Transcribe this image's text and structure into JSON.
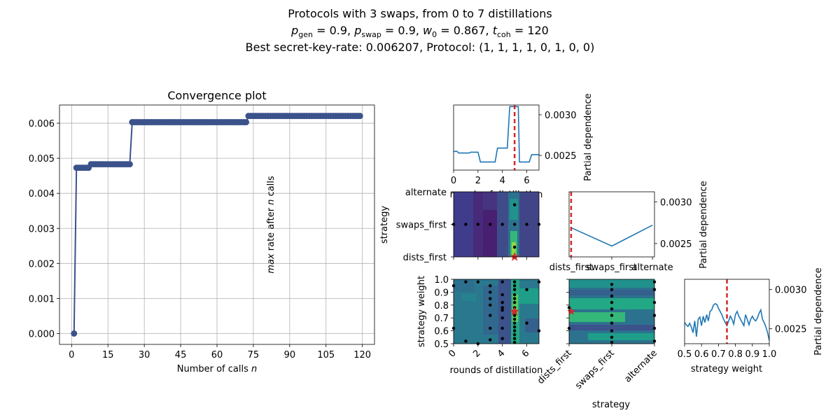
{
  "figure": {
    "title_line1": "Protocols with 3 swaps, from 0 to 7 distillations",
    "title_line2": "p_gen = 0.9, p_swap = 0.9, w_0 = 0.867, t_coh = 120",
    "title_line3": "Best secret-key-rate: 0.006207, Protocol: (1, 1, 1, 1, 0, 1, 0, 0)"
  },
  "convergence": {
    "title": "Convergence plot",
    "xlabel": "Number of calls n",
    "ylabel": "max rate after n calls",
    "xticks": [
      "0",
      "15",
      "30",
      "45",
      "60",
      "75",
      "90",
      "105",
      "120"
    ],
    "yticks": [
      "0.000",
      "0.001",
      "0.002",
      "0.003",
      "0.004",
      "0.005",
      "0.006"
    ]
  },
  "pd_distill": {
    "xlabel": "rounds of distillation",
    "ylabel": "Partial dependence",
    "xticks": [
      "0",
      "2",
      "4",
      "6"
    ],
    "yticks": [
      "0.0025",
      "0.0030"
    ]
  },
  "pd_strategy": {
    "ylabel": "Partial dependence",
    "xticks": [
      "dists_first",
      "swaps_first",
      "alternate"
    ],
    "yticks": [
      "0.0025",
      "0.0030"
    ]
  },
  "pd_weight": {
    "xlabel": "strategy weight",
    "ylabel": "Partial dependence",
    "xticks": [
      "0.5",
      "0.6",
      "0.7",
      "0.8",
      "0.9",
      "1.0"
    ],
    "yticks": [
      "0.0025",
      "0.0030"
    ]
  },
  "contour_sd": {
    "ylabel": "strategy",
    "yticks": [
      "alternate",
      "swaps_first",
      "dists_first"
    ]
  },
  "contour_wd": {
    "xlabel": "rounds of distillation",
    "ylabel": "strategy weight",
    "xticks": [
      "0",
      "2",
      "4",
      "6"
    ],
    "yticks": [
      "1.0",
      "0.9",
      "0.8",
      "0.7",
      "0.6",
      "0.5"
    ]
  },
  "contour_ws": {
    "xlabel": "strategy",
    "xticks": [
      "dists_first",
      "swaps_first",
      "alternate"
    ]
  },
  "colors": {
    "convergence_line": "#3b528b",
    "pd_line": "#1f77b4",
    "best_marker": "#d62728",
    "grid": "#b0b0b0"
  },
  "chart_data": [
    {
      "type": "line",
      "name": "convergence",
      "xlim": [
        -5,
        125
      ],
      "ylim": [
        -0.00031,
        0.00652
      ],
      "grid": true,
      "x_start": 1,
      "y": [
        0,
        0.00473,
        0.00473,
        0.00473,
        0.00473,
        0.00473,
        0.00473,
        0.00483,
        0.00483,
        0.00483,
        0.00483,
        0.00483,
        0.00483,
        0.00483,
        0.00483,
        0.00483,
        0.00483,
        0.00483,
        0.00483,
        0.00483,
        0.00483,
        0.00483,
        0.00483,
        0.00483,
        0.00603,
        0.00603,
        0.00603,
        0.00603,
        0.00603,
        0.00603,
        0.00603,
        0.00603,
        0.00603,
        0.00603,
        0.00603,
        0.00603,
        0.00603,
        0.00603,
        0.00603,
        0.00603,
        0.00603,
        0.00603,
        0.00603,
        0.00603,
        0.00603,
        0.00603,
        0.00603,
        0.00603,
        0.00603,
        0.00603,
        0.00603,
        0.00603,
        0.00603,
        0.00603,
        0.00603,
        0.00603,
        0.00603,
        0.00603,
        0.00603,
        0.00603,
        0.00603,
        0.00603,
        0.00603,
        0.00603,
        0.00603,
        0.00603,
        0.00603,
        0.00603,
        0.00603,
        0.00603,
        0.00603,
        0.00603,
        0.006207,
        0.006207,
        0.006207,
        0.006207,
        0.006207,
        0.006207,
        0.006207,
        0.006207,
        0.006207,
        0.006207,
        0.006207,
        0.006207,
        0.006207,
        0.006207,
        0.006207,
        0.006207,
        0.006207,
        0.006207,
        0.006207,
        0.006207,
        0.006207,
        0.006207,
        0.006207,
        0.006207,
        0.006207,
        0.006207,
        0.006207,
        0.006207,
        0.006207,
        0.006207,
        0.006207,
        0.006207,
        0.006207,
        0.006207,
        0.006207,
        0.006207,
        0.006207,
        0.006207,
        0.006207,
        0.006207,
        0.006207,
        0.006207,
        0.006207,
        0.006207,
        0.006207,
        0.006207,
        0.006207
      ]
    },
    {
      "type": "line",
      "name": "partial dependence vs rounds of distillation",
      "xlim": [
        0,
        7
      ],
      "ylim": [
        0.00232,
        0.00312
      ],
      "best_x": 5,
      "x": [
        0,
        0.3,
        0.4,
        1.0,
        1.3,
        1.4,
        1.6,
        2.0,
        2.2,
        2.8,
        2.9,
        3.4,
        3.6,
        4.0,
        4.4,
        4.6,
        5.3,
        5.4,
        5.6,
        6.2,
        6.4,
        6.8,
        7.0
      ],
      "y": [
        0.00255,
        0.00255,
        0.00253,
        0.00253,
        0.00253,
        0.00254,
        0.00254,
        0.00254,
        0.00242,
        0.00242,
        0.00242,
        0.00242,
        0.00259,
        0.00259,
        0.00259,
        0.0031,
        0.0031,
        0.00242,
        0.00242,
        0.00242,
        0.00251,
        0.00251,
        0.00251
      ]
    },
    {
      "type": "line",
      "name": "partial dependence vs strategy",
      "categories": [
        "dists_first",
        "swaps_first",
        "alternate"
      ],
      "ylim": [
        0.00234,
        0.00312
      ],
      "best_x": 0,
      "values": [
        0.00269,
        0.00247,
        0.00272
      ]
    },
    {
      "type": "line",
      "name": "partial dependence vs strategy weight",
      "xlim": [
        0.5,
        1.0
      ],
      "ylim": [
        0.00231,
        0.00313
      ],
      "best_x": 0.75,
      "x": [
        0.5,
        0.51,
        0.52,
        0.53,
        0.54,
        0.55,
        0.56,
        0.57,
        0.58,
        0.59,
        0.6,
        0.61,
        0.62,
        0.63,
        0.64,
        0.65,
        0.66,
        0.67,
        0.68,
        0.69,
        0.7,
        0.71,
        0.72,
        0.73,
        0.74,
        0.75,
        0.76,
        0.77,
        0.78,
        0.79,
        0.8,
        0.81,
        0.82,
        0.83,
        0.84,
        0.85,
        0.86,
        0.87,
        0.88,
        0.89,
        0.9,
        0.91,
        0.92,
        0.93,
        0.94,
        0.95,
        0.96,
        0.97,
        0.98,
        0.99,
        1.0
      ],
      "y": [
        0.00258,
        0.00255,
        0.00253,
        0.00257,
        0.00252,
        0.00245,
        0.0026,
        0.0024,
        0.00262,
        0.00265,
        0.00254,
        0.00266,
        0.00258,
        0.00268,
        0.0026,
        0.00272,
        0.00274,
        0.0028,
        0.00282,
        0.00281,
        0.00276,
        0.00272,
        0.00268,
        0.00262,
        0.00258,
        0.00254,
        0.0026,
        0.00266,
        0.00262,
        0.00256,
        0.00268,
        0.00272,
        0.00266,
        0.00262,
        0.00258,
        0.00254,
        0.00268,
        0.00262,
        0.00255,
        0.00262,
        0.00266,
        0.00262,
        0.0026,
        0.00264,
        0.0027,
        0.00274,
        0.00262,
        0.00258,
        0.00252,
        0.00245,
        0.00235
      ]
    },
    {
      "type": "heatmap",
      "name": "strategy vs rounds of distillation",
      "xlim": [
        0,
        7
      ],
      "rows": [
        "dists_first",
        "swaps_first",
        "alternate"
      ],
      "best": [
        5,
        0
      ],
      "samples": [
        [
          0,
          1
        ],
        [
          1,
          1
        ],
        [
          2,
          1
        ],
        [
          3,
          1
        ],
        [
          4,
          1
        ],
        [
          5,
          1
        ],
        [
          6,
          1
        ],
        [
          7,
          1
        ],
        [
          5,
          0.3
        ],
        [
          5,
          1.6
        ]
      ]
    },
    {
      "type": "heatmap",
      "name": "strategy weight vs rounds of distillation",
      "xlim": [
        0,
        7
      ],
      "ylim": [
        0.5,
        1.0
      ],
      "best": [
        5,
        0.75
      ],
      "samples": [
        [
          0,
          0.95
        ],
        [
          0,
          0.62
        ],
        [
          1,
          0.98
        ],
        [
          1,
          0.52
        ],
        [
          2,
          0.98
        ],
        [
          2,
          0.5
        ],
        [
          3,
          0.95
        ],
        [
          3,
          0.9
        ],
        [
          3,
          0.85
        ],
        [
          3,
          0.8
        ],
        [
          3,
          0.72
        ],
        [
          3,
          0.62
        ],
        [
          3,
          0.53
        ],
        [
          4,
          0.98
        ],
        [
          4,
          0.88
        ],
        [
          4,
          0.82
        ],
        [
          4,
          0.78
        ],
        [
          4,
          0.76
        ],
        [
          4,
          0.7
        ],
        [
          4,
          0.62
        ],
        [
          4,
          0.54
        ],
        [
          5,
          0.98
        ],
        [
          5,
          0.95
        ],
        [
          5,
          0.92
        ],
        [
          5,
          0.88
        ],
        [
          5,
          0.85
        ],
        [
          5,
          0.82
        ],
        [
          5,
          0.78
        ],
        [
          5,
          0.75
        ],
        [
          5,
          0.72
        ],
        [
          5,
          0.69
        ],
        [
          5,
          0.66
        ],
        [
          5,
          0.63
        ],
        [
          5,
          0.6
        ],
        [
          5,
          0.57
        ],
        [
          5,
          0.54
        ],
        [
          5,
          0.51
        ],
        [
          6,
          0.92
        ],
        [
          6,
          0.66
        ],
        [
          7,
          0.98
        ],
        [
          7,
          0.6
        ]
      ]
    },
    {
      "type": "heatmap",
      "name": "strategy weight vs strategy",
      "categories": [
        "dists_first",
        "swaps_first",
        "alternate"
      ],
      "ylim": [
        0.5,
        1.0
      ],
      "best": [
        0,
        0.75
      ],
      "samples": [
        [
          0,
          0.78
        ],
        [
          0,
          0.62
        ],
        [
          1,
          0.96
        ],
        [
          1,
          0.92
        ],
        [
          1,
          0.87
        ],
        [
          1,
          0.82
        ],
        [
          1,
          0.77
        ],
        [
          1,
          0.72
        ],
        [
          1,
          0.66
        ],
        [
          1,
          0.6
        ],
        [
          1,
          0.55
        ],
        [
          1,
          0.51
        ],
        [
          2,
          0.98
        ],
        [
          2,
          0.92
        ],
        [
          2,
          0.82
        ],
        [
          2,
          0.72
        ],
        [
          2,
          0.62
        ],
        [
          2,
          0.52
        ]
      ]
    }
  ]
}
